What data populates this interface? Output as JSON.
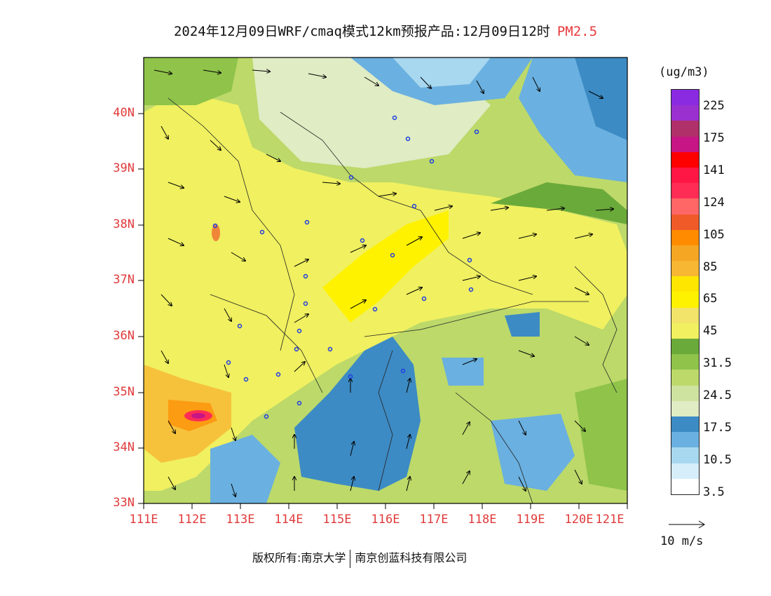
{
  "title": {
    "main": "2024年12月09日WRF/cmaq模式12km预报产品:12月09日12时",
    "variable": "PM2.5"
  },
  "map": {
    "lat_labels": [
      "40N",
      "39N",
      "38N",
      "37N",
      "36N",
      "35N",
      "34N",
      "33N"
    ],
    "lon_labels": [
      "111E",
      "112E",
      "113E",
      "114E",
      "115E",
      "116E",
      "117E",
      "118E",
      "119E",
      "120E",
      "121E"
    ]
  },
  "colorbar": {
    "unit": "(ug/m3)",
    "labels": [
      "225",
      "175",
      "141",
      "124",
      "105",
      "85",
      "65",
      "45",
      "31.5",
      "24.5",
      "17.5",
      "10.5",
      "3.5"
    ],
    "colors": [
      "#8a2be2",
      "#9b30d0",
      "#b0306a",
      "#c71585",
      "#ff0000",
      "#ff1744",
      "#ff2d55",
      "#ff6666",
      "#f05a28",
      "#ff8c00",
      "#f5a623",
      "#f7b733",
      "#ffe600",
      "#fff200",
      "#f2e46b",
      "#f0f060",
      "#6aaa3a",
      "#8fc34a",
      "#bcd96a",
      "#cfe3a0",
      "#e0ecc4",
      "#3d8bc4",
      "#6ab0e0",
      "#a8d8f0",
      "#d6eefa",
      "#ffffff"
    ]
  },
  "wind_key": {
    "label": "10 m/s"
  },
  "footer": {
    "copyright": "版权所有:南京大学",
    "partner": "南京创蓝科技有限公司"
  }
}
